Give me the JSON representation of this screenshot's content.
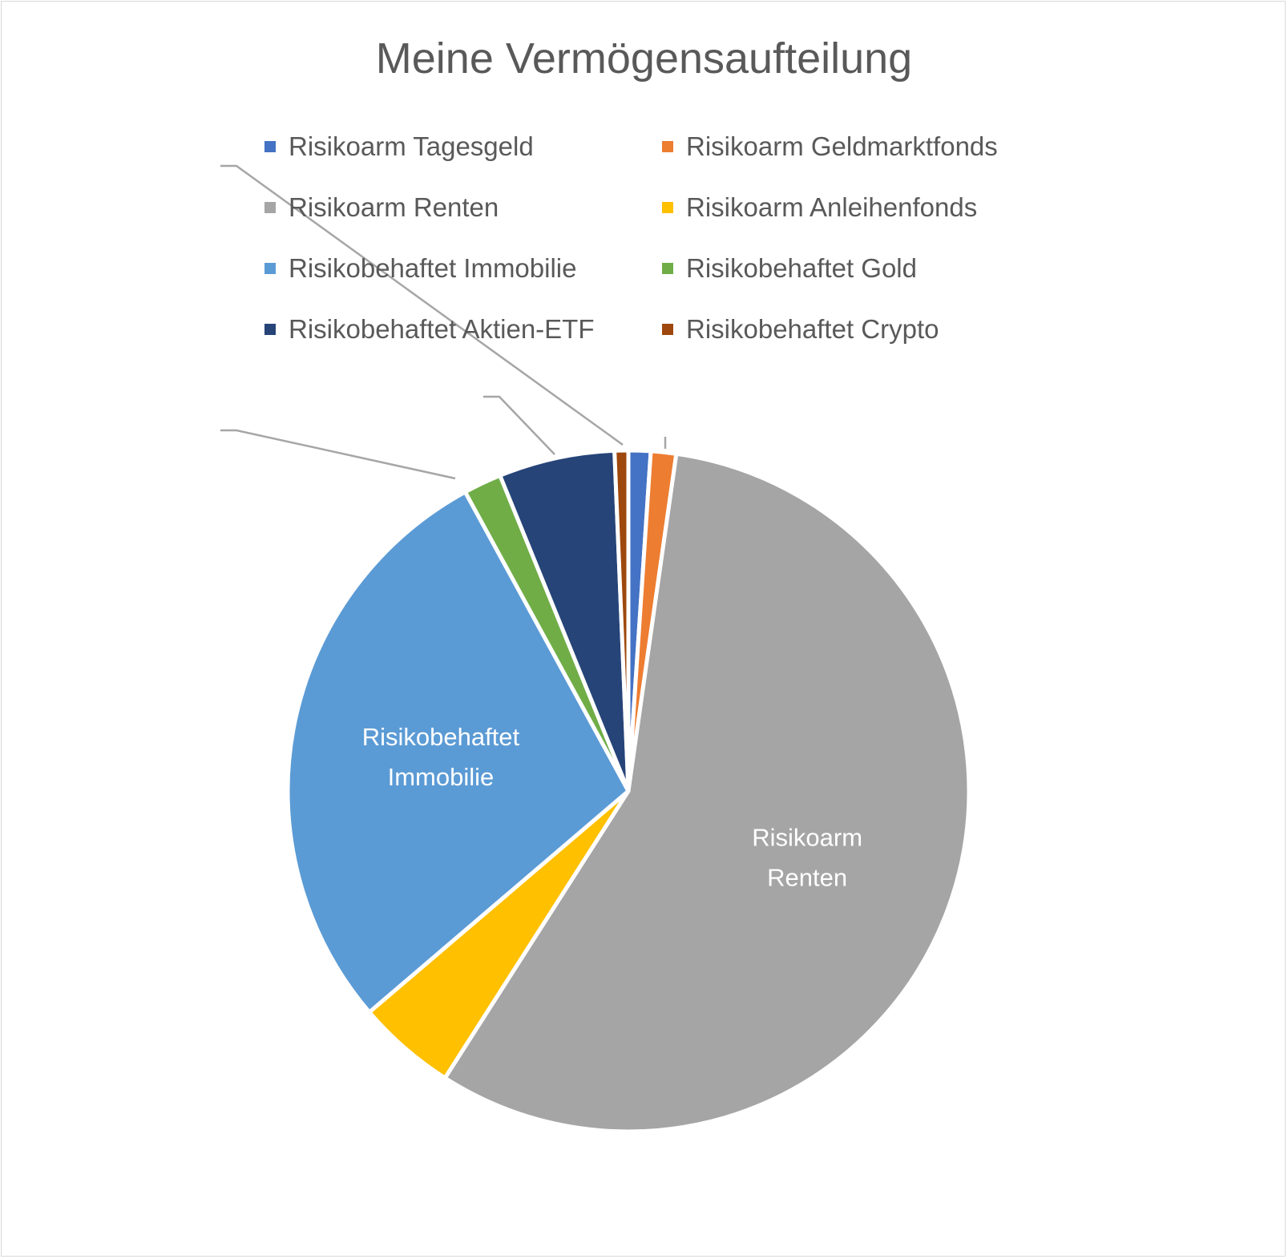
{
  "chart_data": {
    "type": "pie",
    "title": "Meine Vermögensaufteilung",
    "unit": "percent (estimated)",
    "legend_position": "top",
    "slices": [
      {
        "name": "Risikoarm Tagesgeld",
        "value": 1.05,
        "color": "#4472C4",
        "label": ""
      },
      {
        "name": "Risikoarm Geldmarktfonds",
        "value": 1.2,
        "color": "#ED7D31",
        "label": ""
      },
      {
        "name": "Risikoarm Renten",
        "value": 56.8,
        "color": "#A5A5A5",
        "label": "Risikoarm Renten",
        "label_lines": [
          "Risikoarm",
          "Renten"
        ]
      },
      {
        "name": "Risikoarm Anleihenfonds",
        "value": 4.7,
        "color": "#FFC000",
        "label": ""
      },
      {
        "name": "Risikobehaftet Immobilie",
        "value": 28.3,
        "color": "#5B9BD5",
        "label": "Risikobehaftet Immobilie",
        "label_lines": [
          "Risikobehaftet",
          "Immobilie"
        ]
      },
      {
        "name": "Risikobehaftet Gold",
        "value": 1.8,
        "color": "#70AD47",
        "label": ""
      },
      {
        "name": "Risikobehaftet Aktien-ETF",
        "value": 5.5,
        "color": "#264478",
        "label": ""
      },
      {
        "name": "Risikobehaftet Crypto",
        "value": 0.65,
        "color": "#9E480E",
        "label": ""
      }
    ]
  }
}
